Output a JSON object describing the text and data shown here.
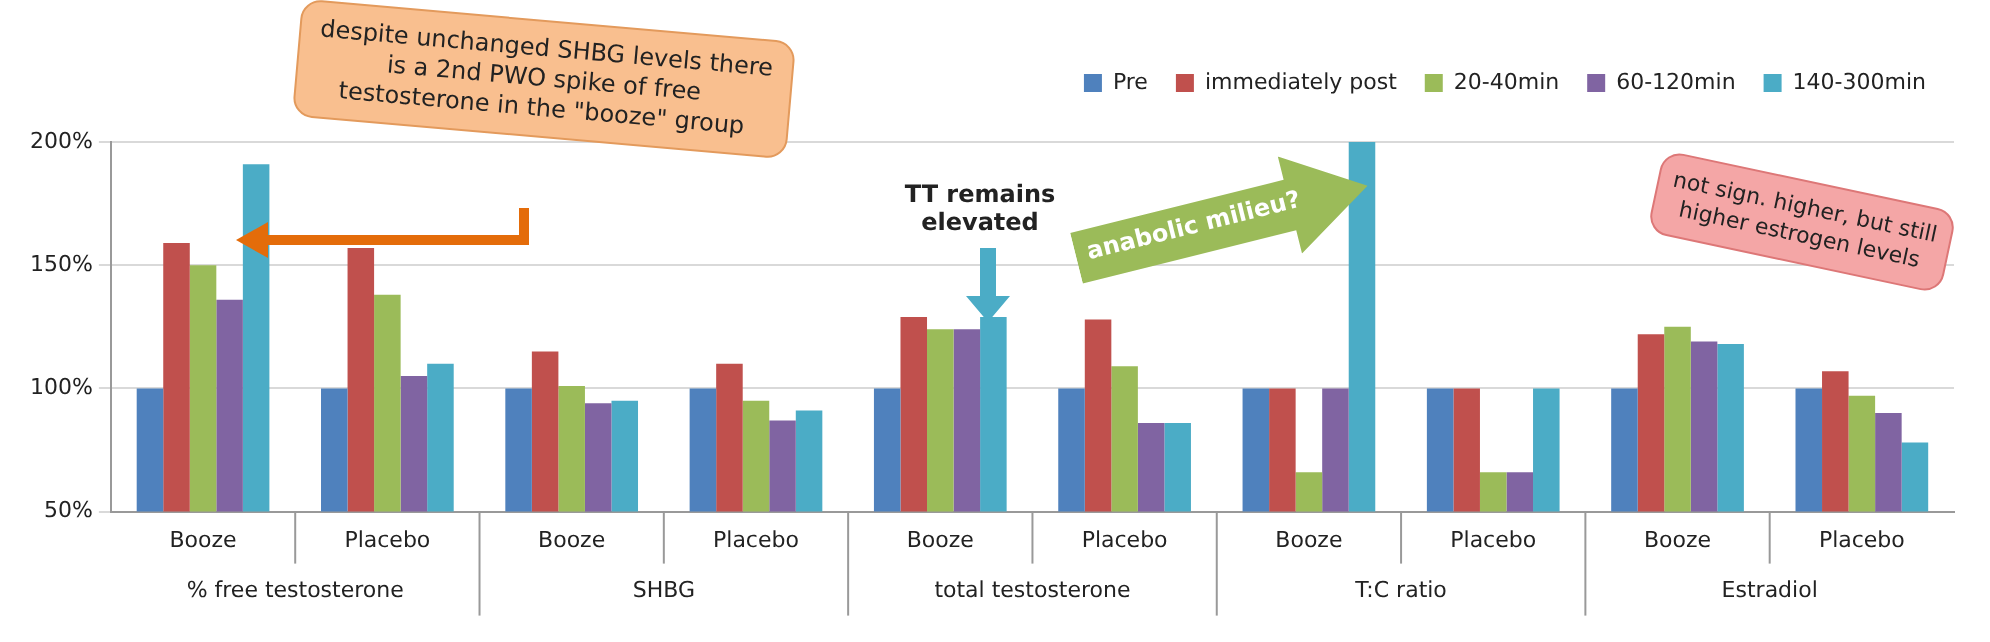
{
  "chart_data": {
    "type": "bar",
    "categories": [
      "Booze",
      "Placebo",
      "Booze",
      "Placebo",
      "Booze",
      "Placebo",
      "Booze",
      "Placebo",
      "Booze",
      "Placebo"
    ],
    "series": [
      {
        "name": "Pre",
        "color": "#4f81bd",
        "values": [
          100,
          100,
          100,
          100,
          100,
          100,
          100,
          100,
          100,
          100
        ]
      },
      {
        "name": "immediately post",
        "color": "#c0504d",
        "values": [
          159,
          157,
          115,
          110,
          129,
          128,
          100,
          100,
          122,
          107
        ]
      },
      {
        "name": "20-40min",
        "color": "#9bbb59",
        "values": [
          150,
          138,
          101,
          95,
          124,
          109,
          66,
          66,
          125,
          97
        ]
      },
      {
        "name": "60-120min",
        "color": "#8064a2",
        "values": [
          136,
          105,
          94,
          87,
          124,
          86,
          100,
          66,
          119,
          90
        ]
      },
      {
        "name": "140-300min",
        "color": "#4bacc6",
        "values": [
          191,
          110,
          95,
          91,
          129,
          86,
          200,
          100,
          118,
          78
        ]
      }
    ],
    "ylim": [
      50,
      200
    ],
    "yticks": [
      {
        "value": 50,
        "label": "50%"
      },
      {
        "value": 100,
        "label": "100%"
      },
      {
        "value": 150,
        "label": "150%"
      },
      {
        "value": 200,
        "label": "200%"
      }
    ],
    "grid": "y",
    "legend": "top right",
    "annotations": [
      "% free testosterone",
      "SHBG",
      "total testosterone",
      "T:C ratio",
      "Estradiol",
      "despite unchanged SHBG levels there is a 2nd PWO spike of free testosterone in the \"booze\" group",
      "TT remains elevated",
      "anabolic milieu?",
      "not sign. higher, but still higher estrogen levels"
    ]
  }
}
